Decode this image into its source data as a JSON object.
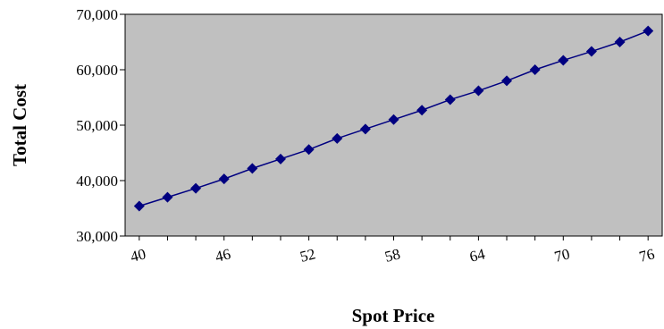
{
  "chart_data": {
    "type": "line",
    "title": "",
    "xlabel": "Spot Price",
    "ylabel": "Total Cost",
    "x": [
      41,
      43,
      45,
      47,
      49,
      51,
      53,
      55,
      57,
      59,
      61,
      63,
      65,
      67,
      69,
      71,
      73,
      75,
      77
    ],
    "x_tick_labels": [
      "40",
      "46",
      "52",
      "58",
      "64",
      "70",
      "76"
    ],
    "y_tick_labels": [
      "30,000",
      "40,000",
      "50,000",
      "60,000",
      "70,000"
    ],
    "ylim": [
      30000,
      70000
    ],
    "series": [
      {
        "values": [
          35400,
          37000,
          38600,
          40300,
          42200,
          43900,
          45600,
          47600,
          49300,
          51000,
          52700,
          54600,
          56200,
          58000,
          60000,
          61700,
          63300,
          65000,
          67000
        ]
      }
    ],
    "grid": false,
    "plot_background": "#c0c0c0",
    "line_color": "#000080",
    "marker": "diamond",
    "legend": "none"
  }
}
